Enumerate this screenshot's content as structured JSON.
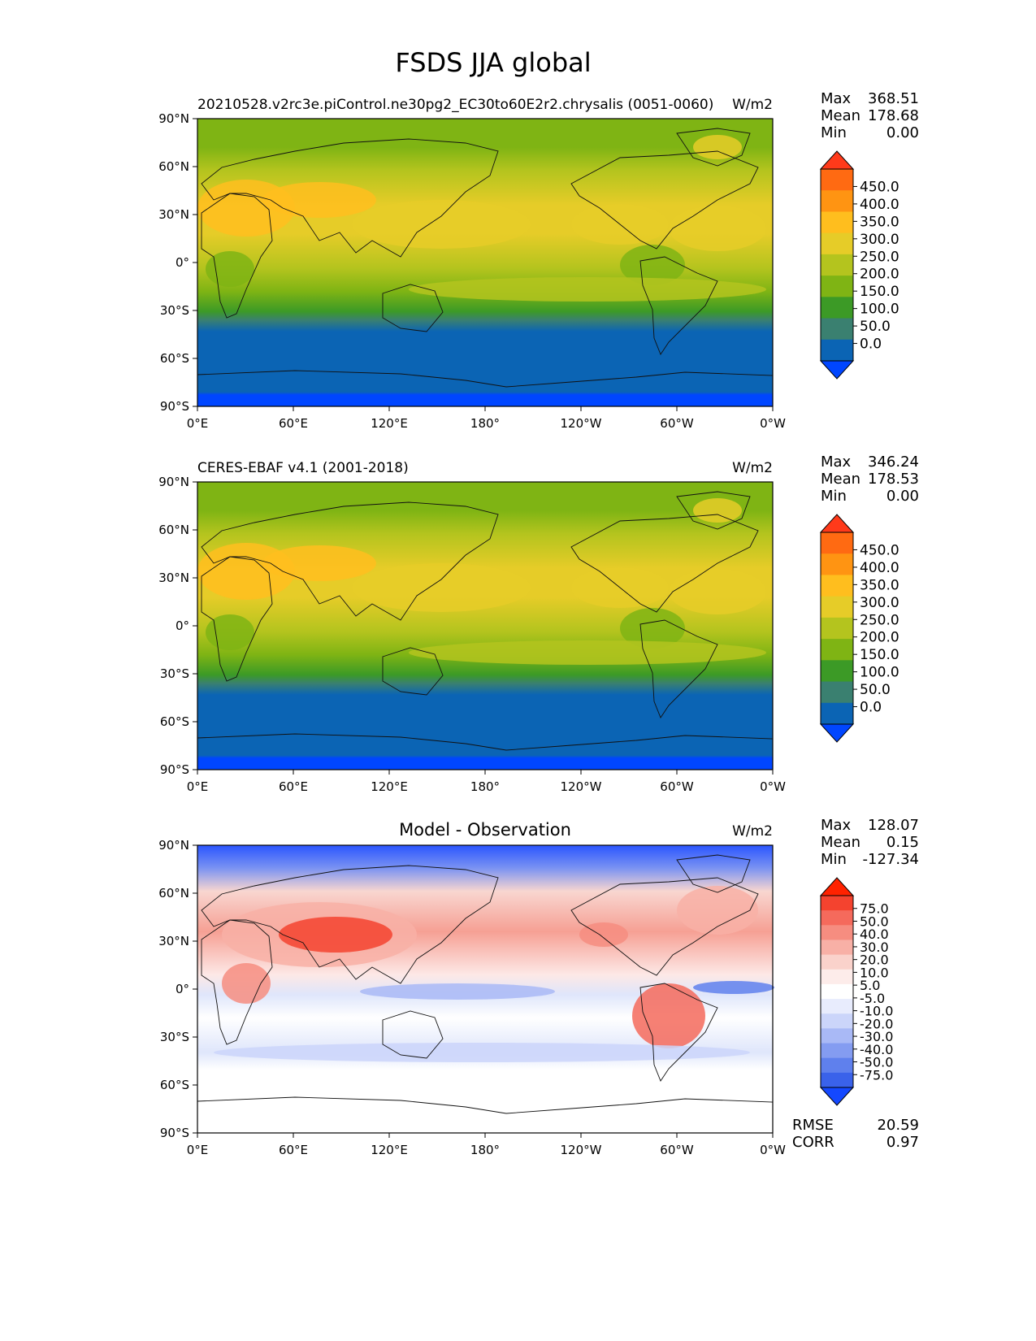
{
  "figure": {
    "title": "FSDS JJA global"
  },
  "axes": {
    "lat_labels": [
      "90°N",
      "60°N",
      "30°N",
      "0°",
      "30°S",
      "60°S",
      "90°S"
    ],
    "lon_labels": [
      "0°E",
      "60°E",
      "120°E",
      "180°",
      "120°W",
      "60°W",
      "0°W"
    ]
  },
  "panels": [
    {
      "id": "model",
      "title_left": "20210528.v2rc3e.piControl.ne30pg2_EC30to60E2r2.chrysalis (0051-0060)",
      "title_center": "",
      "units": "W/m2",
      "stats": {
        "max_label": "Max",
        "max": "368.51",
        "mean_label": "Mean",
        "mean": "178.68",
        "min_label": "Min",
        "min": "0.00"
      },
      "colorbar_ticks": [
        "450.0",
        "400.0",
        "350.0",
        "300.0",
        "250.0",
        "200.0",
        "150.0",
        "100.0",
        "50.0",
        "0.0"
      ],
      "colorbar_colors": [
        "#ff3a1a",
        "#ff6a12",
        "#ff9412",
        "#ffbe1e",
        "#e6cc28",
        "#b4c41e",
        "#7fb414",
        "#3c9a26",
        "#3a8070",
        "#0b64b4",
        "#0046ff"
      ]
    },
    {
      "id": "obs",
      "title_left": "CERES-EBAF v4.1 (2001-2018)",
      "title_center": "",
      "units": "W/m2",
      "stats": {
        "max_label": "Max",
        "max": "346.24",
        "mean_label": "Mean",
        "mean": "178.53",
        "min_label": "Min",
        "min": "0.00"
      },
      "colorbar_ticks": [
        "450.0",
        "400.0",
        "350.0",
        "300.0",
        "250.0",
        "200.0",
        "150.0",
        "100.0",
        "50.0",
        "0.0"
      ],
      "colorbar_colors": [
        "#ff3a1a",
        "#ff6a12",
        "#ff9412",
        "#ffbe1e",
        "#e6cc28",
        "#b4c41e",
        "#7fb414",
        "#3c9a26",
        "#3a8070",
        "#0b64b4",
        "#0046ff"
      ]
    },
    {
      "id": "diff",
      "title_left": "",
      "title_center": "Model - Observation",
      "units": "W/m2",
      "stats": {
        "max_label": "Max",
        "max": "128.07",
        "mean_label": "Mean",
        "mean": "0.15",
        "min_label": "Min",
        "min": "-127.34"
      },
      "colorbar_ticks": [
        "75.0",
        "50.0",
        "40.0",
        "30.0",
        "20.0",
        "10.0",
        "5.0",
        "-5.0",
        "-10.0",
        "-20.0",
        "-30.0",
        "-40.0",
        "-50.0",
        "-75.0"
      ],
      "colorbar_colors": [
        "#ff2200",
        "#f4432f",
        "#f56a5c",
        "#f68d80",
        "#f8b0a6",
        "#fad2cb",
        "#fdecea",
        "#ffffff",
        "#e8ecfd",
        "#cbd5fa",
        "#a9b9f6",
        "#849cf1",
        "#5f80ed",
        "#3a62ea",
        "#1448ff"
      ],
      "metrics": {
        "rmse_label": "RMSE",
        "rmse": "20.59",
        "corr_label": "CORR",
        "corr": "0.97"
      }
    }
  ]
}
